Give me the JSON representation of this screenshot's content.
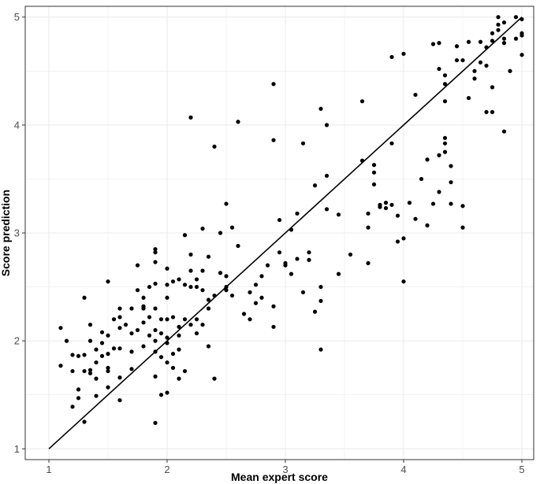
{
  "chart_data": {
    "type": "scatter",
    "xlabel": "Mean expert score",
    "ylabel": "Score prediction",
    "xlim": [
      0.8,
      5.1
    ],
    "ylim": [
      0.9,
      5.1
    ],
    "x_ticks": [
      1,
      2,
      3,
      4,
      5
    ],
    "y_ticks": [
      1,
      2,
      3,
      4,
      5
    ],
    "grid": true,
    "background": "#ffffff",
    "grid_color": "#ebebeb",
    "point_color": "#000000",
    "reference_line": {
      "from": [
        1,
        1
      ],
      "to": [
        5,
        5
      ],
      "color": "#000000"
    },
    "points": [
      [
        1.1,
        2.12
      ],
      [
        1.1,
        1.77
      ],
      [
        1.15,
        2.0
      ],
      [
        1.2,
        1.87
      ],
      [
        1.2,
        1.72
      ],
      [
        1.2,
        1.39
      ],
      [
        1.25,
        1.86
      ],
      [
        1.25,
        1.55
      ],
      [
        1.25,
        1.47
      ],
      [
        1.3,
        2.4
      ],
      [
        1.3,
        1.87
      ],
      [
        1.3,
        1.72
      ],
      [
        1.3,
        1.25
      ],
      [
        1.35,
        2.15
      ],
      [
        1.35,
        2.0
      ],
      [
        1.35,
        1.73
      ],
      [
        1.35,
        1.7
      ],
      [
        1.4,
        1.92
      ],
      [
        1.4,
        1.8
      ],
      [
        1.4,
        1.65
      ],
      [
        1.4,
        1.49
      ],
      [
        1.45,
        2.08
      ],
      [
        1.45,
        1.98
      ],
      [
        1.45,
        1.86
      ],
      [
        1.5,
        2.55
      ],
      [
        1.5,
        2.05
      ],
      [
        1.5,
        1.88
      ],
      [
        1.5,
        1.75
      ],
      [
        1.5,
        1.72
      ],
      [
        1.5,
        1.57
      ],
      [
        1.55,
        2.2
      ],
      [
        1.55,
        1.93
      ],
      [
        1.6,
        2.3
      ],
      [
        1.6,
        2.22
      ],
      [
        1.6,
        2.12
      ],
      [
        1.6,
        1.93
      ],
      [
        1.6,
        1.66
      ],
      [
        1.6,
        1.45
      ],
      [
        1.65,
        2.15
      ],
      [
        1.7,
        2.07
      ],
      [
        1.7,
        1.9
      ],
      [
        1.7,
        1.74
      ],
      [
        1.75,
        2.7
      ],
      [
        1.75,
        2.47
      ],
      [
        1.75,
        2.1
      ],
      [
        1.8,
        2.4
      ],
      [
        1.8,
        2.32
      ],
      [
        1.8,
        2.3
      ],
      [
        1.8,
        2.17
      ],
      [
        1.8,
        1.95
      ],
      [
        1.85,
        2.5
      ],
      [
        1.85,
        2.22
      ],
      [
        1.85,
        2.05
      ],
      [
        1.9,
        2.85
      ],
      [
        1.9,
        2.82
      ],
      [
        1.9,
        2.73
      ],
      [
        1.9,
        2.53
      ],
      [
        1.9,
        2.3
      ],
      [
        1.9,
        2.1
      ],
      [
        1.9,
        1.9
      ],
      [
        1.9,
        1.67
      ],
      [
        1.9,
        1.24
      ],
      [
        1.95,
        2.2
      ],
      [
        1.95,
        2.07
      ],
      [
        1.95,
        1.85
      ],
      [
        1.95,
        1.5
      ],
      [
        2.0,
        2.67
      ],
      [
        2.0,
        2.52
      ],
      [
        2.0,
        2.2
      ],
      [
        2.0,
        2.03
      ],
      [
        2.0,
        1.98
      ],
      [
        2.0,
        1.8
      ],
      [
        2.0,
        1.52
      ],
      [
        2.05,
        2.55
      ],
      [
        2.05,
        2.22
      ],
      [
        2.05,
        1.88
      ],
      [
        2.05,
        1.75
      ],
      [
        2.1,
        2.57
      ],
      [
        2.1,
        2.13
      ],
      [
        2.1,
        2.05
      ],
      [
        2.1,
        1.92
      ],
      [
        2.1,
        1.65
      ],
      [
        2.15,
        2.98
      ],
      [
        2.15,
        2.52
      ],
      [
        2.15,
        2.2
      ],
      [
        2.15,
        1.72
      ],
      [
        2.2,
        4.07
      ],
      [
        2.2,
        2.8
      ],
      [
        2.2,
        2.65
      ],
      [
        2.2,
        2.5
      ],
      [
        2.2,
        2.15
      ],
      [
        2.25,
        2.5
      ],
      [
        2.25,
        2.2
      ],
      [
        2.25,
        2.07
      ],
      [
        2.3,
        3.04
      ],
      [
        2.3,
        2.65
      ],
      [
        2.3,
        2.47
      ],
      [
        2.3,
        2.15
      ],
      [
        2.35,
        2.78
      ],
      [
        2.35,
        2.38
      ],
      [
        2.35,
        2.3
      ],
      [
        2.35,
        1.95
      ],
      [
        2.4,
        3.8
      ],
      [
        2.4,
        2.42
      ],
      [
        2.4,
        1.65
      ],
      [
        2.45,
        3.0
      ],
      [
        2.45,
        2.63
      ],
      [
        2.5,
        3.27
      ],
      [
        2.5,
        2.5
      ],
      [
        2.5,
        2.47
      ],
      [
        2.55,
        3.05
      ],
      [
        2.55,
        2.42
      ],
      [
        2.6,
        4.03
      ],
      [
        2.6,
        2.88
      ],
      [
        2.65,
        2.25
      ],
      [
        2.7,
        2.2
      ],
      [
        2.7,
        2.45
      ],
      [
        2.75,
        2.52
      ],
      [
        2.75,
        2.35
      ],
      [
        2.8,
        2.6
      ],
      [
        2.8,
        2.4
      ],
      [
        2.85,
        2.7
      ],
      [
        2.9,
        4.38
      ],
      [
        2.9,
        3.86
      ],
      [
        2.9,
        2.13
      ],
      [
        2.9,
        2.32
      ],
      [
        2.95,
        3.12
      ],
      [
        2.95,
        2.82
      ],
      [
        3.0,
        2.72
      ],
      [
        3.0,
        2.7
      ],
      [
        3.05,
        3.03
      ],
      [
        3.05,
        2.62
      ],
      [
        3.1,
        3.18
      ],
      [
        3.1,
        2.76
      ],
      [
        3.15,
        3.83
      ],
      [
        3.15,
        2.45
      ],
      [
        3.2,
        2.82
      ],
      [
        3.2,
        2.75
      ],
      [
        3.25,
        3.44
      ],
      [
        3.25,
        2.27
      ],
      [
        3.3,
        4.15
      ],
      [
        3.3,
        2.37
      ],
      [
        3.3,
        1.92
      ],
      [
        3.35,
        4.0
      ],
      [
        3.35,
        3.53
      ],
      [
        3.35,
        3.22
      ],
      [
        3.45,
        3.17
      ],
      [
        3.45,
        2.62
      ],
      [
        3.55,
        2.8
      ],
      [
        3.65,
        4.22
      ],
      [
        3.65,
        3.67
      ],
      [
        3.7,
        3.18
      ],
      [
        3.7,
        3.05
      ],
      [
        3.7,
        2.72
      ],
      [
        3.75,
        3.63
      ],
      [
        3.75,
        3.56
      ],
      [
        3.75,
        3.45
      ],
      [
        3.8,
        3.26
      ],
      [
        3.8,
        3.24
      ],
      [
        3.85,
        3.28
      ],
      [
        3.85,
        3.23
      ],
      [
        3.9,
        4.63
      ],
      [
        3.9,
        3.83
      ],
      [
        3.9,
        3.26
      ],
      [
        3.95,
        3.16
      ],
      [
        3.95,
        2.92
      ],
      [
        4.0,
        4.66
      ],
      [
        4.0,
        2.95
      ],
      [
        4.0,
        2.55
      ],
      [
        4.05,
        3.28
      ],
      [
        4.1,
        4.28
      ],
      [
        4.1,
        3.13
      ],
      [
        4.15,
        3.5
      ],
      [
        4.2,
        3.07
      ],
      [
        4.2,
        3.68
      ],
      [
        4.25,
        4.75
      ],
      [
        4.25,
        3.27
      ],
      [
        4.3,
        4.52
      ],
      [
        4.3,
        3.72
      ],
      [
        4.3,
        3.38
      ],
      [
        4.35,
        4.46
      ],
      [
        4.35,
        4.38
      ],
      [
        4.35,
        4.22
      ],
      [
        4.35,
        3.88
      ],
      [
        4.35,
        3.83
      ],
      [
        4.35,
        3.75
      ],
      [
        4.4,
        3.62
      ],
      [
        4.4,
        3.47
      ],
      [
        4.4,
        3.27
      ],
      [
        4.45,
        4.73
      ],
      [
        4.45,
        4.6
      ],
      [
        4.5,
        3.25
      ],
      [
        4.5,
        3.05
      ],
      [
        4.55,
        4.77
      ],
      [
        4.55,
        4.25
      ],
      [
        4.6,
        4.5
      ],
      [
        4.6,
        4.43
      ],
      [
        4.65,
        4.77
      ],
      [
        4.65,
        4.58
      ],
      [
        4.7,
        4.72
      ],
      [
        4.7,
        4.55
      ],
      [
        4.7,
        4.12
      ],
      [
        4.75,
        4.85
      ],
      [
        4.75,
        4.78
      ],
      [
        4.75,
        4.35
      ],
      [
        4.75,
        4.12
      ],
      [
        4.8,
        5.0
      ],
      [
        4.8,
        4.93
      ],
      [
        4.8,
        4.88
      ],
      [
        4.85,
        4.95
      ],
      [
        4.85,
        4.76
      ],
      [
        4.85,
        3.94
      ],
      [
        4.9,
        4.5
      ],
      [
        4.95,
        5.0
      ],
      [
        4.95,
        4.8
      ],
      [
        5.0,
        4.98
      ],
      [
        5.0,
        4.85
      ],
      [
        5.0,
        4.83
      ],
      [
        5.0,
        4.65
      ],
      [
        4.85,
        4.8
      ],
      [
        4.3,
        4.76
      ],
      [
        4.5,
        4.6
      ],
      [
        1.9,
        2.0
      ],
      [
        2.5,
        2.6
      ],
      [
        3.3,
        2.5
      ],
      [
        1.7,
        2.3
      ],
      [
        2.0,
        2.4
      ],
      [
        2.25,
        2.57
      ]
    ]
  }
}
